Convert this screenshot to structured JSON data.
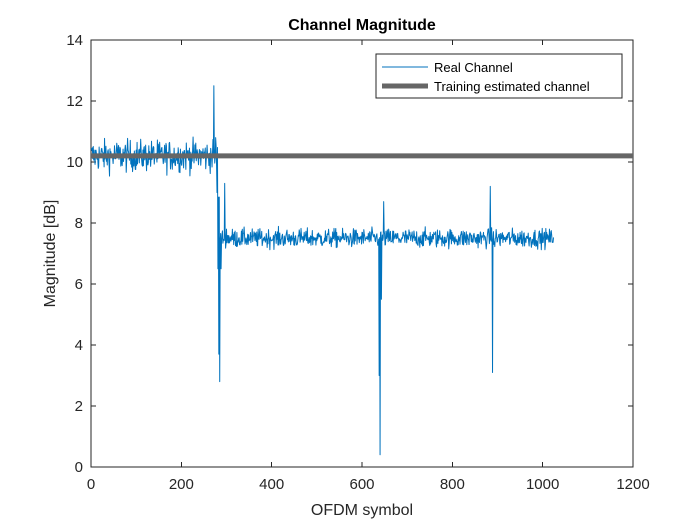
{
  "chart_data": {
    "type": "line",
    "title": "Channel Magnitude",
    "xlabel": "OFDM symbol",
    "ylabel": "Magnitude [dB]",
    "xlim": [
      0,
      1200
    ],
    "ylim": [
      0,
      14
    ],
    "xticks": [
      0,
      200,
      400,
      600,
      800,
      1000,
      1200
    ],
    "yticks": [
      0,
      2,
      4,
      6,
      8,
      10,
      12,
      14
    ],
    "grid": false,
    "legend_position": "top-right",
    "series": [
      {
        "name": "Real Channel",
        "color": "#0072BD",
        "line_width": "thin",
        "x_range": [
          1,
          1024
        ],
        "baseline_segments": [
          {
            "x_start": 1,
            "x_end": 280,
            "level": 10.2,
            "noise": 0.25
          },
          {
            "x_start": 285,
            "x_end": 1024,
            "level": 7.5,
            "noise": 0.15
          }
        ],
        "events": [
          {
            "x": 272,
            "y": 12.5
          },
          {
            "x": 276,
            "y": 10.8
          },
          {
            "x": 279,
            "y": 9.0
          },
          {
            "x": 281,
            "y": 6.5
          },
          {
            "x": 283,
            "y": 3.7
          },
          {
            "x": 285,
            "y": 2.8
          },
          {
            "x": 288,
            "y": 6.5
          },
          {
            "x": 296,
            "y": 9.3
          },
          {
            "x": 300,
            "y": 7.8
          },
          {
            "x": 638,
            "y": 3.0
          },
          {
            "x": 640,
            "y": 0.4
          },
          {
            "x": 643,
            "y": 5.5
          },
          {
            "x": 648,
            "y": 8.7
          },
          {
            "x": 884,
            "y": 9.2
          },
          {
            "x": 889,
            "y": 3.1
          },
          {
            "x": 892,
            "y": 7.3
          }
        ]
      },
      {
        "name": "Training estimated channel",
        "color": "#666666",
        "line_width": "thick",
        "x": [
          0,
          1200
        ],
        "y": [
          10.2,
          10.2
        ]
      }
    ]
  }
}
